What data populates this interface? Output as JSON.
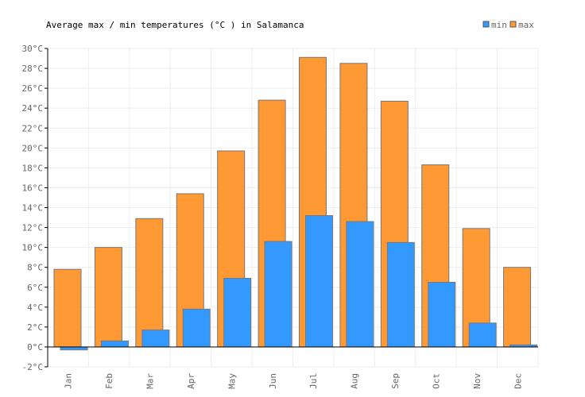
{
  "chart_data": {
    "type": "bar",
    "title": "Average max / min temperatures (°C ) in Salamanca",
    "categories": [
      "Jan",
      "Feb",
      "Mar",
      "Apr",
      "May",
      "Jun",
      "Jul",
      "Aug",
      "Sep",
      "Oct",
      "Nov",
      "Dec"
    ],
    "series": [
      {
        "name": "max",
        "color": "#ff9933",
        "values": [
          7.8,
          10.0,
          12.9,
          15.4,
          19.7,
          24.8,
          29.1,
          28.5,
          24.7,
          18.3,
          11.9,
          8.0
        ]
      },
      {
        "name": "min",
        "color": "#3399ff",
        "values": [
          -0.3,
          0.6,
          1.7,
          3.8,
          6.9,
          10.6,
          13.2,
          12.6,
          10.5,
          6.5,
          2.4,
          0.2
        ]
      }
    ],
    "ylim": [
      -2,
      30
    ],
    "yticks": [
      "-2°C",
      "0°C",
      "2°C",
      "4°C",
      "6°C",
      "8°C",
      "10°C",
      "12°C",
      "14°C",
      "16°C",
      "18°C",
      "20°C",
      "22°C",
      "24°C",
      "26°C",
      "28°C",
      "30°C"
    ],
    "grid": true,
    "legend": {
      "position": "top-right",
      "entries": [
        "min",
        "max"
      ]
    }
  }
}
